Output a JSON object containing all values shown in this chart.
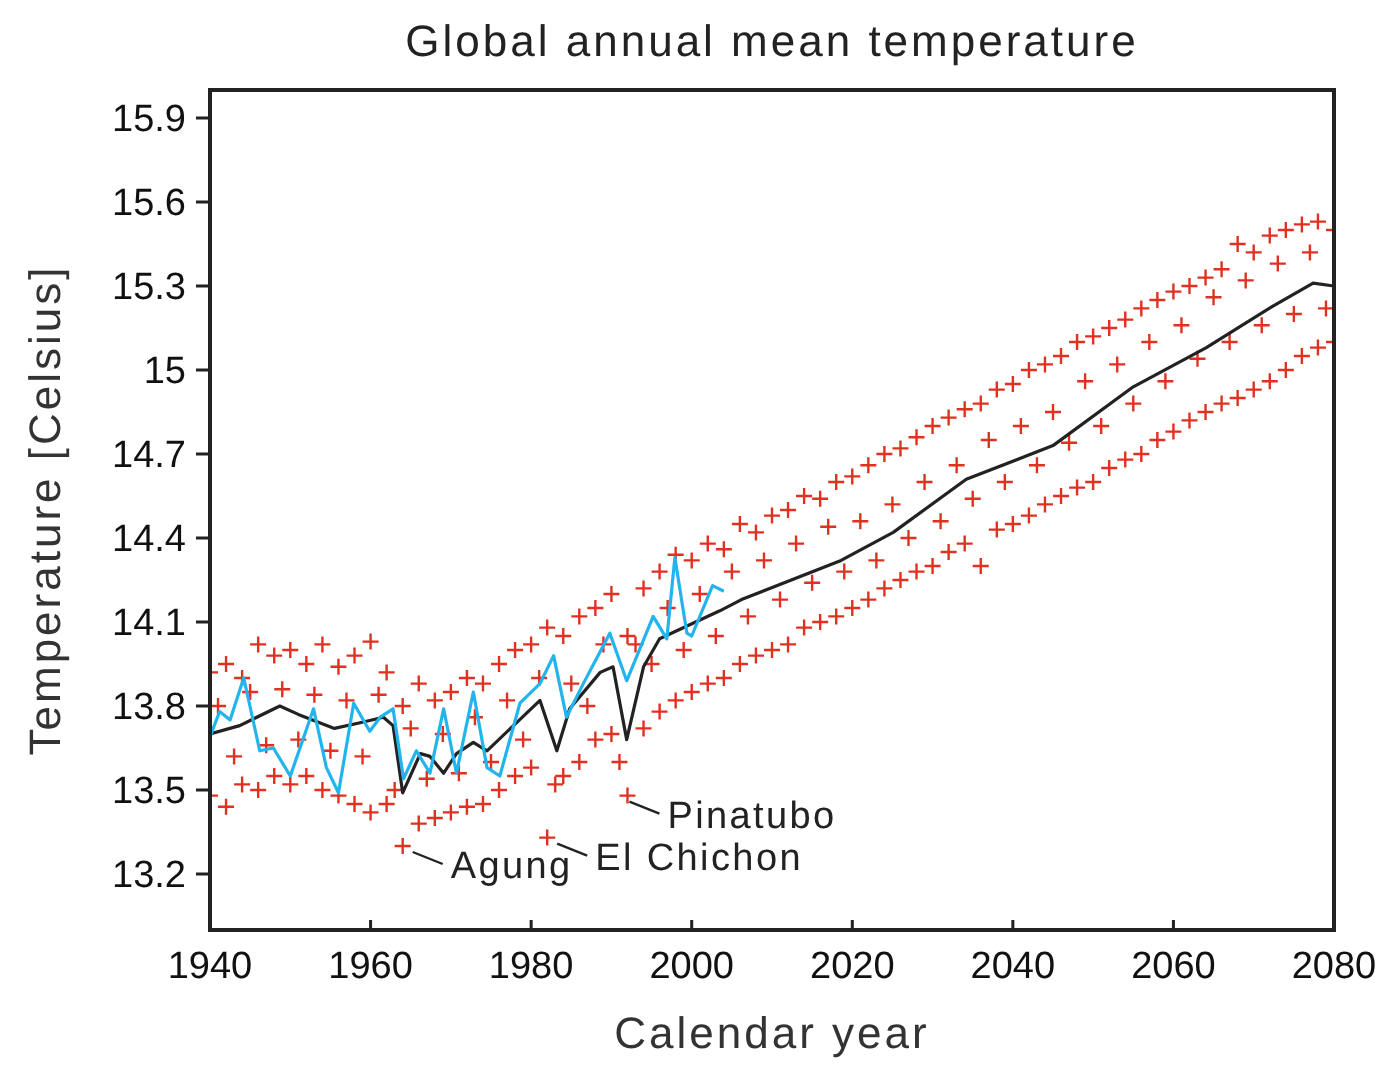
{
  "chart_data": {
    "type": "scatter",
    "title": "Global annual mean temperature",
    "xlabel": "Calendar year",
    "ylabel": "Temperature [Celsius]",
    "xlim": [
      1940,
      2080
    ],
    "xticks": [
      1940,
      1960,
      1980,
      2000,
      2020,
      2040,
      2060,
      2080
    ],
    "ylim": [
      13,
      16
    ],
    "yticks": [
      13.2,
      13.5,
      13.8,
      14.1,
      14.4,
      14.7,
      15,
      15.3,
      15.6,
      15.9
    ],
    "marker": "cross",
    "series": [
      {
        "color": "#e03020",
        "x": [
          1941,
          1943,
          1945,
          1947,
          1949,
          1951,
          1953,
          1955,
          1957,
          1959,
          1961,
          1963,
          1965,
          1967,
          1969,
          1971,
          1973,
          1975,
          1977,
          1979,
          1981,
          1983,
          1985,
          1987,
          1989,
          1991,
          1993,
          1995,
          1997,
          1999,
          2001,
          2003,
          2005,
          2007,
          2009,
          2011,
          2013,
          2015,
          2017,
          2019,
          2021,
          2023,
          2025,
          2027,
          2029,
          2031,
          2033,
          2035,
          2037,
          2039,
          2041,
          2043,
          2045,
          2047,
          2049,
          2051,
          2053,
          2055,
          2057,
          2059,
          2061,
          2063,
          2065,
          2067,
          2069,
          2071,
          2073,
          2075,
          2077,
          2079
        ],
        "values": [
          13.8,
          13.62,
          13.85,
          13.66,
          13.86,
          13.68,
          13.84,
          13.64,
          13.82,
          13.62,
          13.84,
          13.5,
          13.72,
          13.54,
          13.7,
          13.56,
          13.76,
          13.6,
          13.82,
          13.68,
          13.9,
          13.52,
          13.88,
          13.8,
          14.02,
          13.6,
          14.02,
          13.95,
          14.15,
          14.0,
          14.2,
          14.05,
          14.28,
          14.12,
          14.32,
          14.18,
          14.38,
          14.24,
          14.44,
          14.28,
          14.46,
          14.32,
          14.52,
          14.4,
          14.6,
          14.46,
          14.66,
          14.54,
          14.75,
          14.6,
          14.8,
          14.66,
          14.85,
          14.74,
          14.96,
          14.8,
          15.02,
          14.88,
          15.1,
          14.96,
          15.16,
          15.04,
          15.26,
          15.1,
          15.32,
          15.16,
          15.38,
          15.2,
          15.42,
          15.22
        ]
      },
      {
        "color": "#e03020",
        "x": [
          1940,
          1942,
          1944,
          1946,
          1948,
          1950,
          1952,
          1954,
          1956,
          1958,
          1960,
          1962,
          1964,
          1966,
          1968,
          1970,
          1972,
          1974,
          1976,
          1978,
          1980,
          1982,
          1984,
          1986,
          1988,
          1990,
          1992,
          1994,
          1996,
          1998,
          2000,
          2002,
          2004,
          2006,
          2008,
          2010,
          2012,
          2014,
          2016,
          2018,
          2020,
          2022,
          2024,
          2026,
          2028,
          2030,
          2032,
          2034,
          2036,
          2038,
          2040,
          2042,
          2044,
          2046,
          2048,
          2050,
          2052,
          2054,
          2056,
          2058,
          2060,
          2062,
          2064,
          2066,
          2068,
          2070,
          2072,
          2074,
          2076,
          2078,
          2080
        ],
        "values": [
          13.92,
          13.95,
          13.9,
          14.02,
          13.98,
          14.0,
          13.95,
          14.02,
          13.94,
          13.98,
          14.03,
          13.92,
          13.8,
          13.88,
          13.82,
          13.85,
          13.9,
          13.88,
          13.95,
          14.0,
          14.02,
          14.08,
          14.05,
          14.12,
          14.15,
          14.2,
          14.05,
          14.22,
          14.28,
          14.34,
          14.32,
          14.38,
          14.36,
          14.45,
          14.42,
          14.48,
          14.5,
          14.55,
          14.54,
          14.6,
          14.62,
          14.66,
          14.7,
          14.72,
          14.76,
          14.8,
          14.83,
          14.86,
          14.88,
          14.93,
          14.95,
          15.0,
          15.02,
          15.05,
          15.1,
          15.12,
          15.15,
          15.18,
          15.22,
          15.25,
          15.28,
          15.3,
          15.33,
          15.36,
          15.45,
          15.42,
          15.48,
          15.5,
          15.52,
          15.53,
          15.5
        ]
      },
      {
        "color": "#e03020",
        "x": [
          1940,
          1942,
          1944,
          1946,
          1948,
          1950,
          1952,
          1954,
          1956,
          1958,
          1960,
          1962,
          1964,
          1966,
          1968,
          1970,
          1972,
          1974,
          1976,
          1978,
          1980,
          1982,
          1984,
          1986,
          1988,
          1990,
          1992,
          1994,
          1996,
          1998,
          2000,
          2002,
          2004,
          2006,
          2008,
          2010,
          2012,
          2014,
          2016,
          2018,
          2020,
          2022,
          2024,
          2026,
          2028,
          2030,
          2032,
          2034,
          2036,
          2038,
          2040,
          2042,
          2044,
          2046,
          2048,
          2050,
          2052,
          2054,
          2056,
          2058,
          2060,
          2062,
          2064,
          2066,
          2068,
          2070,
          2072,
          2074,
          2076,
          2078,
          2080
        ],
        "values": [
          13.48,
          13.44,
          13.52,
          13.5,
          13.55,
          13.52,
          13.55,
          13.5,
          13.48,
          13.45,
          13.42,
          13.45,
          13.3,
          13.38,
          13.4,
          13.42,
          13.44,
          13.45,
          13.5,
          13.55,
          13.58,
          13.33,
          13.55,
          13.6,
          13.68,
          13.7,
          13.48,
          13.72,
          13.78,
          13.82,
          13.85,
          13.88,
          13.9,
          13.95,
          13.98,
          14.0,
          14.02,
          14.08,
          14.1,
          14.12,
          14.15,
          14.18,
          14.22,
          14.25,
          14.28,
          14.3,
          14.35,
          14.38,
          14.3,
          14.43,
          14.45,
          14.48,
          14.52,
          14.55,
          14.58,
          14.6,
          14.65,
          14.68,
          14.7,
          14.75,
          14.78,
          14.82,
          14.85,
          14.88,
          14.9,
          14.93,
          14.96,
          15.0,
          15.05,
          15.08,
          15.1
        ]
      },
      {
        "type": "line",
        "color": "#222222",
        "marker": "none",
        "x": [
          1940,
          1943.7,
          1948.7,
          1951,
          1955.5,
          1958.7,
          1961.6,
          1962.8,
          1964,
          1966.2,
          1967.4,
          1969.1,
          1970.7,
          1972.8,
          1974.5,
          1977.8,
          1981.1,
          1983.2,
          1984.8,
          1988.6,
          1990.2,
          1991.9,
          1994,
          1996,
          2003.5,
          2006.2,
          2018.6,
          2025.1,
          2034.2,
          2045,
          2055,
          2064.1,
          2072.5,
          2077.4,
          2080
        ],
        "values": [
          13.7,
          13.73,
          13.8,
          13.77,
          13.72,
          13.74,
          13.76,
          13.73,
          13.49,
          13.63,
          13.62,
          13.56,
          13.63,
          13.67,
          13.64,
          13.73,
          13.82,
          13.64,
          13.79,
          13.92,
          13.94,
          13.68,
          13.94,
          14.04,
          14.14,
          14.18,
          14.32,
          14.42,
          14.61,
          14.73,
          14.94,
          15.08,
          15.23,
          15.31,
          15.3
        ]
      },
      {
        "type": "line",
        "color": "#22b4ec",
        "marker": "none",
        "x": [
          1940,
          1941.2,
          1942.5,
          1944.2,
          1946.2,
          1947.9,
          1950,
          1952.9,
          1954.5,
          1956,
          1957.9,
          1959.9,
          1961.2,
          1962.8,
          1964.1,
          1965.7,
          1967.4,
          1969.1,
          1970.7,
          1972.8,
          1974.5,
          1976.1,
          1978.6,
          1981.1,
          1982.8,
          1984.4,
          1986.5,
          1989.8,
          1991.9,
          1995.2,
          1996.9,
          1997.9,
          1999.4,
          2000,
          2002.6,
          2004
        ],
        "values": [
          13.69,
          13.78,
          13.75,
          13.9,
          13.64,
          13.65,
          13.55,
          13.79,
          13.58,
          13.49,
          13.81,
          13.71,
          13.76,
          13.79,
          13.54,
          13.64,
          13.56,
          13.79,
          13.56,
          13.85,
          13.58,
          13.55,
          13.81,
          13.88,
          13.98,
          13.76,
          13.88,
          14.06,
          13.89,
          14.12,
          14.04,
          14.33,
          14.06,
          14.05,
          14.23,
          14.21
        ]
      }
    ],
    "annotations": [
      {
        "text": "Agung",
        "x": 1964,
        "y": 13.3
      },
      {
        "text": "El Chichon",
        "x": 1982,
        "y": 13.33
      },
      {
        "text": "Pinatubo",
        "x": 1991,
        "y": 13.48
      }
    ]
  }
}
